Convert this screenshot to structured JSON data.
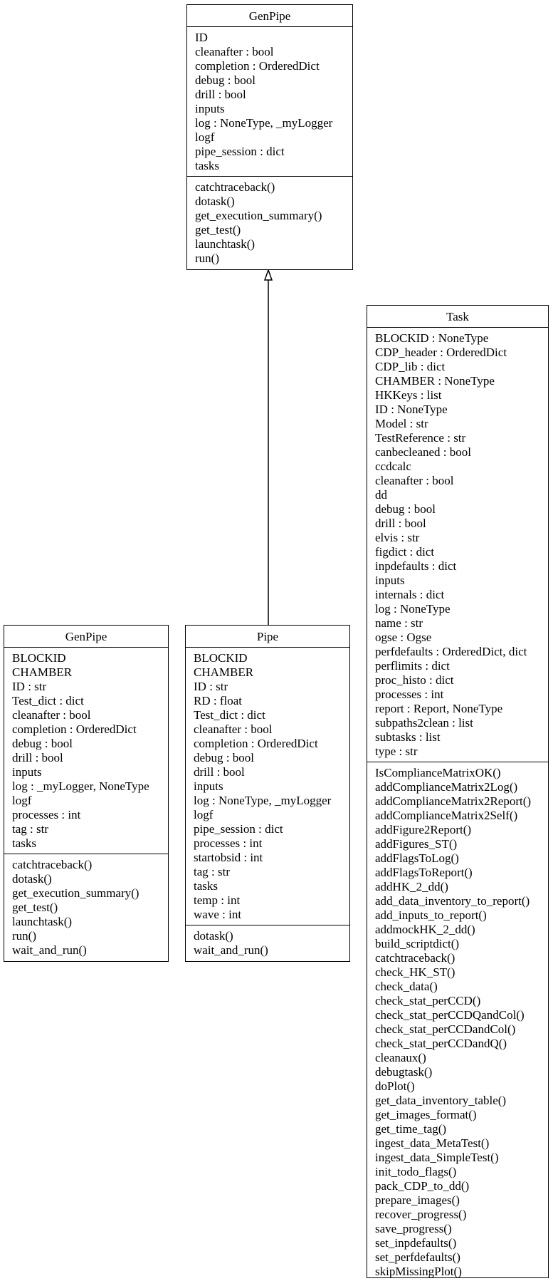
{
  "classes": {
    "genpipe_top": {
      "name": "GenPipe",
      "attributes": [
        "ID",
        "cleanafter : bool",
        "completion : OrderedDict",
        "debug : bool",
        "drill : bool",
        "inputs",
        "log : NoneType, _myLogger",
        "logf",
        "pipe_session : dict",
        "tasks"
      ],
      "methods": [
        "catchtraceback()",
        "dotask()",
        "get_execution_summary()",
        "get_test()",
        "launchtask()",
        "run()"
      ]
    },
    "genpipe_left": {
      "name": "GenPipe",
      "attributes": [
        "BLOCKID",
        "CHAMBER",
        "ID : str",
        "Test_dict : dict",
        "cleanafter : bool",
        "completion : OrderedDict",
        "debug : bool",
        "drill : bool",
        "inputs",
        "log : _myLogger, NoneType",
        "logf",
        "processes : int",
        "tag : str",
        "tasks"
      ],
      "methods": [
        "catchtraceback()",
        "dotask()",
        "get_execution_summary()",
        "get_test()",
        "launchtask()",
        "run()",
        "wait_and_run()"
      ]
    },
    "pipe": {
      "name": "Pipe",
      "attributes": [
        "BLOCKID",
        "CHAMBER",
        "ID : str",
        "RD : float",
        "Test_dict : dict",
        "cleanafter : bool",
        "completion : OrderedDict",
        "debug : bool",
        "drill : bool",
        "inputs",
        "log : NoneType, _myLogger",
        "logf",
        "pipe_session : dict",
        "processes : int",
        "startobsid : int",
        "tag : str",
        "tasks",
        "temp : int",
        "wave : int"
      ],
      "methods": [
        "dotask()",
        "wait_and_run()"
      ]
    },
    "task": {
      "name": "Task",
      "attributes": [
        "BLOCKID : NoneType",
        "CDP_header : OrderedDict",
        "CDP_lib : dict",
        "CHAMBER : NoneType",
        "HKKeys : list",
        "ID : NoneType",
        "Model : str",
        "TestReference : str",
        "canbecleaned : bool",
        "ccdcalc",
        "cleanafter : bool",
        "dd",
        "debug : bool",
        "drill : bool",
        "elvis : str",
        "figdict : dict",
        "inpdefaults : dict",
        "inputs",
        "internals : dict",
        "log : NoneType",
        "name : str",
        "ogse : Ogse",
        "perfdefaults : OrderedDict, dict",
        "perflimits : dict",
        "proc_histo : dict",
        "processes : int",
        "report : Report, NoneType",
        "subpaths2clean : list",
        "subtasks : list",
        "type : str"
      ],
      "methods": [
        "IsComplianceMatrixOK()",
        "addComplianceMatrix2Log()",
        "addComplianceMatrix2Report()",
        "addComplianceMatrix2Self()",
        "addFigure2Report()",
        "addFigures_ST()",
        "addFlagsToLog()",
        "addFlagsToReport()",
        "addHK_2_dd()",
        "add_data_inventory_to_report()",
        "add_inputs_to_report()",
        "addmockHK_2_dd()",
        "build_scriptdict()",
        "catchtraceback()",
        "check_HK_ST()",
        "check_data()",
        "check_stat_perCCD()",
        "check_stat_perCCDQandCol()",
        "check_stat_perCCDandCol()",
        "check_stat_perCCDandQ()",
        "cleanaux()",
        "debugtask()",
        "doPlot()",
        "get_data_inventory_table()",
        "get_images_format()",
        "get_time_tag()",
        "ingest_data_MetaTest()",
        "ingest_data_SimpleTest()",
        "init_todo_flags()",
        "pack_CDP_to_dd()",
        "prepare_images()",
        "recover_progress()",
        "save_progress()",
        "set_inpdefaults()",
        "set_perfdefaults()",
        "skipMissingPlot()"
      ]
    }
  },
  "edges": [
    {
      "from": "pipe",
      "to": "genpipe_top",
      "type": "inheritance"
    }
  ]
}
